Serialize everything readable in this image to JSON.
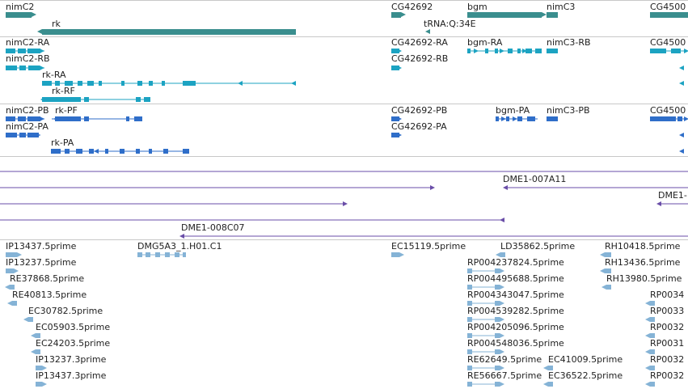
{
  "colors": {
    "gene": "#3a8e8e",
    "transcript_flybase": "#1ca3c2",
    "transcript_refseq": "#2f6ec9",
    "clone": "#6a4ea8",
    "est": "#85b3d6",
    "separator": "#c8c8c8"
  },
  "tracks": {
    "genes": [
      "nimC2",
      "rk",
      "CG42692",
      "tRNA:Q:34E",
      "bgm",
      "nimC3",
      "CG4500"
    ],
    "flybase_transcripts": [
      "nimC2-RA",
      "nimC2-RB",
      "rk-RA",
      "rk-RF",
      "CG42692-RA",
      "CG42692-RB",
      "bgm-RA",
      "nimC3-RB",
      "CG4500"
    ],
    "refseq_transcripts": [
      "nimC2-PB",
      "rk-PF",
      "nimC2-PA",
      "rk-PA",
      "CG42692-PB",
      "CG42692-PA",
      "bgm-PA",
      "nimC3-PB",
      "CG4500"
    ],
    "clones": [
      "DME1-007A11",
      "DME1-008C07",
      "DME1-"
    ],
    "ests": [
      "IP13437.5prime",
      "IP13237.5prime",
      "RE37868.5prime",
      "RE40813.5prime",
      "EC30782.5prime",
      "EC05903.5prime",
      "EC24203.5prime",
      "IP13237.3prime",
      "IP13437.3prime",
      "DMG5A3_1.H01.C1",
      "EC15119.5prime",
      "LD35862.5prime",
      "RH10418.5prime",
      "RP004237824.5prime",
      "RP004495688.5prime",
      "RP004343047.5prime",
      "RP004539282.5prime",
      "RP004205096.5prime",
      "RP004548036.5prime",
      "RE62649.5prime",
      "RE56667.5prime",
      "EC41009.5prime",
      "EC36522.5prime",
      "RH13436.5prime",
      "RH13980.5prime",
      "RP0034",
      "RP0033",
      "RP0032",
      "RP0031",
      "RP0032",
      "RP0032"
    ]
  }
}
